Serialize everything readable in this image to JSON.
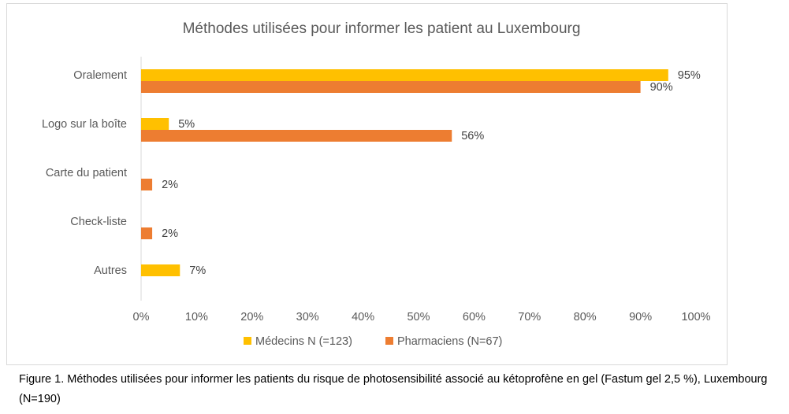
{
  "chart_data": {
    "type": "bar",
    "orientation": "horizontal",
    "title": "Méthodes utilisées pour informer les patient au Luxembourg",
    "categories": [
      "Oralement",
      "Logo sur la boîte",
      "Carte du patient",
      "Check-liste",
      "Autres"
    ],
    "series": [
      {
        "name": "Médecins N (=123)",
        "color": "#ffc000",
        "values": [
          95,
          5,
          null,
          null,
          7
        ],
        "labels": [
          "95%",
          "5%",
          "",
          "",
          "7%"
        ]
      },
      {
        "name": "Pharmaciens (N=67)",
        "color": "#ed7d31",
        "values": [
          90,
          56,
          2,
          2,
          null
        ],
        "labels": [
          "90%",
          "56%",
          "2%",
          "2%",
          ""
        ]
      }
    ],
    "xlim": [
      0,
      100
    ],
    "x_ticks": [
      "0%",
      "10%",
      "20%",
      "30%",
      "40%",
      "50%",
      "60%",
      "70%",
      "80%",
      "90%",
      "100%"
    ],
    "legend_position": "bottom",
    "grid": false
  },
  "caption": {
    "text": "Figure 1. Méthodes utilisées pour informer les patients du risque de photosensibilité associé au kétoprofène en gel (Fastum gel 2,5 %), Luxembourg (N=190)"
  }
}
